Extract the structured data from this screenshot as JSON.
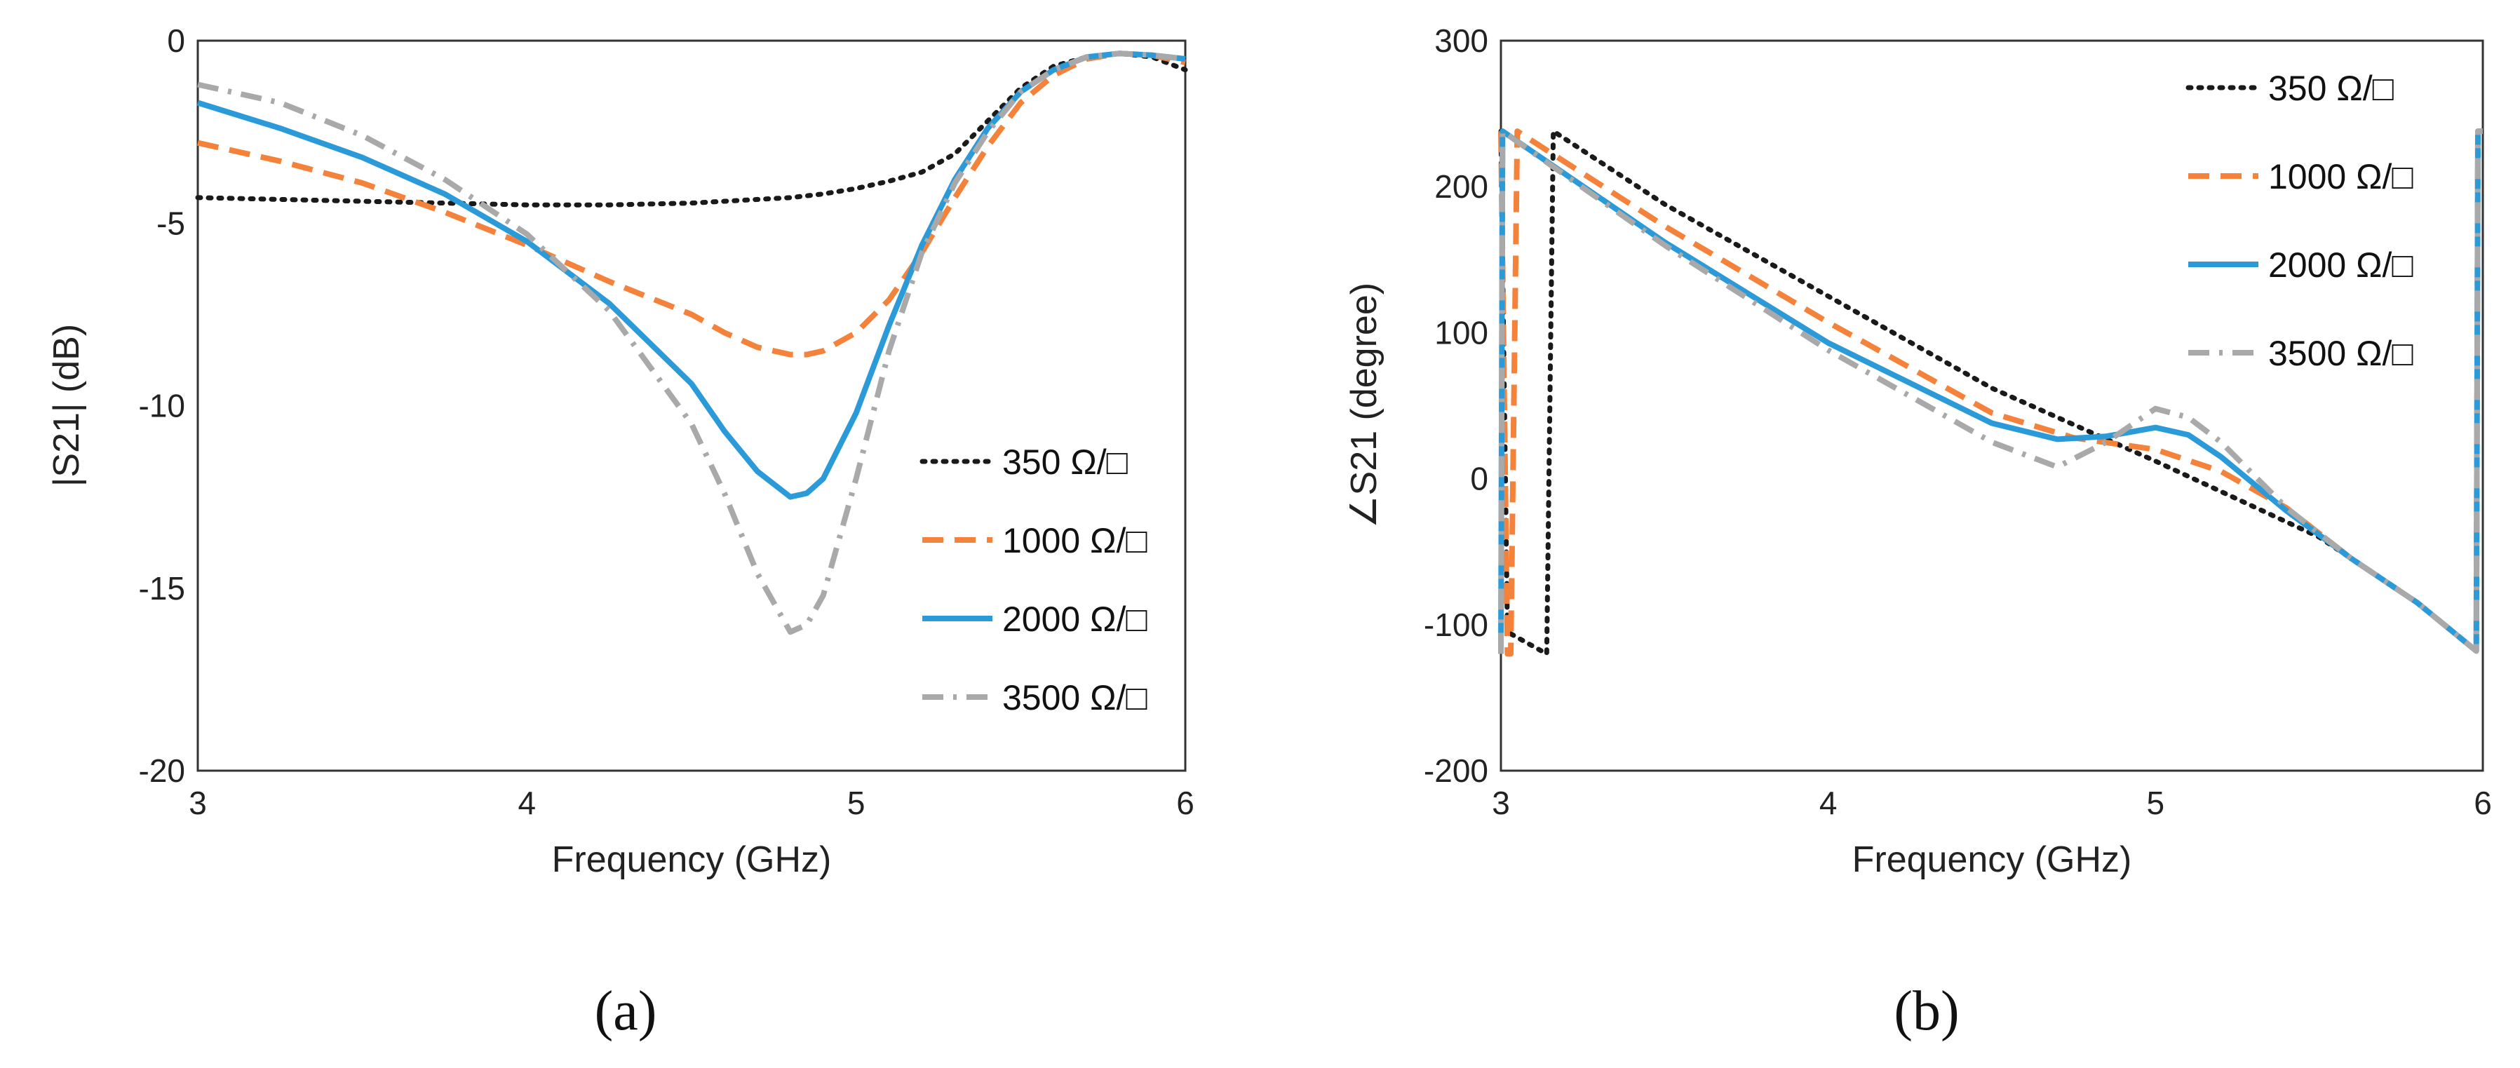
{
  "figure": {
    "sublabel_a": "(a)",
    "sublabel_b": "(b)"
  },
  "chart_data": [
    {
      "id": "a",
      "type": "line",
      "title": "",
      "xlabel": "Frequency (GHz)",
      "ylabel": "|S21|  (dB)",
      "xlim": [
        3,
        6
      ],
      "ylim": [
        -20,
        0
      ],
      "xticks": [
        3,
        4,
        5,
        6
      ],
      "yticks": [
        0,
        -5,
        -10,
        -15,
        -20
      ],
      "grid": false,
      "legend_position": "lower-right",
      "x": [
        3.0,
        3.25,
        3.5,
        3.75,
        4.0,
        4.25,
        4.5,
        4.6,
        4.7,
        4.8,
        4.85,
        4.9,
        5.0,
        5.1,
        5.2,
        5.3,
        5.4,
        5.5,
        5.6,
        5.7,
        5.8,
        5.9,
        6.0
      ],
      "series": [
        {
          "name": "350 Ω/□",
          "color": "#1a1a1a",
          "dash": "dot",
          "values": [
            -4.3,
            -4.35,
            -4.4,
            -4.45,
            -4.5,
            -4.5,
            -4.45,
            -4.4,
            -4.35,
            -4.3,
            -4.25,
            -4.2,
            -4.05,
            -3.85,
            -3.6,
            -3.1,
            -2.2,
            -1.3,
            -0.7,
            -0.45,
            -0.35,
            -0.45,
            -0.8
          ]
        },
        {
          "name": "1000 Ω/□",
          "color": "#f4823a",
          "dash": "dash",
          "values": [
            -2.8,
            -3.3,
            -3.9,
            -4.7,
            -5.6,
            -6.6,
            -7.5,
            -8.0,
            -8.4,
            -8.6,
            -8.6,
            -8.5,
            -8.0,
            -7.1,
            -5.8,
            -4.3,
            -2.9,
            -1.7,
            -0.95,
            -0.5,
            -0.35,
            -0.4,
            -0.6
          ]
        },
        {
          "name": "2000 Ω/□",
          "color": "#2b9ad8",
          "dash": "solid",
          "values": [
            -1.7,
            -2.4,
            -3.2,
            -4.2,
            -5.5,
            -7.2,
            -9.4,
            -10.7,
            -11.8,
            -12.5,
            -12.4,
            -12.0,
            -10.2,
            -7.8,
            -5.6,
            -3.8,
            -2.4,
            -1.4,
            -0.8,
            -0.45,
            -0.35,
            -0.4,
            -0.5
          ]
        },
        {
          "name": "3500 Ω/□",
          "color": "#a9a9a9",
          "dash": "dashdot",
          "values": [
            -1.2,
            -1.7,
            -2.6,
            -3.8,
            -5.3,
            -7.4,
            -10.5,
            -12.4,
            -14.6,
            -16.2,
            -16.0,
            -15.2,
            -12.0,
            -8.5,
            -5.8,
            -3.9,
            -2.5,
            -1.4,
            -0.8,
            -0.45,
            -0.35,
            -0.4,
            -0.5
          ]
        }
      ]
    },
    {
      "id": "b",
      "type": "line",
      "title": "",
      "xlabel": "Frequency (GHz)",
      "ylabel": "∠S21 (degree)",
      "xlim": [
        3,
        6
      ],
      "ylim": [
        -200,
        300
      ],
      "xticks": [
        3,
        4,
        5,
        6
      ],
      "yticks": [
        300,
        200,
        100,
        0,
        -100,
        -200
      ],
      "grid": false,
      "legend_position": "top-right",
      "series": [
        {
          "name": "350 Ω/□",
          "color": "#1a1a1a",
          "dash": "dot",
          "x": [
            3.0,
            3.02,
            3.14,
            3.16,
            3.5,
            4.0,
            4.5,
            5.0,
            5.5,
            5.8,
            5.98,
            5.985,
            6.0
          ],
          "values": [
            238,
            -105,
            -120,
            238,
            188,
            125,
            62,
            12,
            -40,
            -85,
            -118,
            238,
            238
          ]
        },
        {
          "name": "1000 Ω/□",
          "color": "#f4823a",
          "dash": "dash",
          "x": [
            3.0,
            3.02,
            3.03,
            3.05,
            3.5,
            4.0,
            4.5,
            4.75,
            5.0,
            5.2,
            5.4,
            5.6,
            5.8,
            5.98,
            5.985,
            6.0
          ],
          "values": [
            238,
            -120,
            -120,
            238,
            173,
            107,
            45,
            28,
            20,
            5,
            -20,
            -55,
            -85,
            -118,
            238,
            238
          ]
        },
        {
          "name": "2000 Ω/□",
          "color": "#2b9ad8",
          "dash": "solid",
          "x": [
            3.0,
            3.005,
            3.5,
            4.0,
            4.5,
            4.7,
            4.85,
            5.0,
            5.1,
            5.2,
            5.4,
            5.6,
            5.8,
            5.98,
            5.985,
            6.0
          ],
          "values": [
            -120,
            238,
            162,
            93,
            38,
            27,
            29,
            35,
            30,
            15,
            -22,
            -55,
            -85,
            -118,
            238,
            238
          ]
        },
        {
          "name": "3500 Ω/□",
          "color": "#a9a9a9",
          "dash": "dashdot",
          "x": [
            3.0,
            3.005,
            3.5,
            4.0,
            4.5,
            4.7,
            4.85,
            5.0,
            5.1,
            5.2,
            5.4,
            5.6,
            5.8,
            5.98,
            5.985,
            6.0
          ],
          "values": [
            -120,
            238,
            160,
            88,
            25,
            8,
            25,
            48,
            42,
            25,
            -20,
            -55,
            -85,
            -118,
            238,
            238
          ]
        }
      ]
    }
  ]
}
